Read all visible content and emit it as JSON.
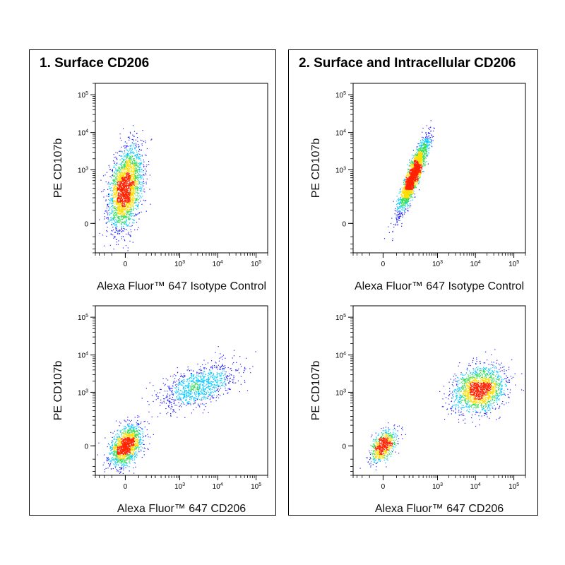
{
  "panels": [
    {
      "title": "1. Surface CD206"
    },
    {
      "title": "2. Surface and Intracellular CD206"
    }
  ],
  "colors": {
    "density_low": "#1a1aff",
    "density_mid1": "#00c8ff",
    "density_mid2": "#33dd55",
    "density_mid3": "#ffdd00",
    "density_high": "#ff2200"
  },
  "chart_data": [
    {
      "type": "scatter",
      "panel": 0,
      "xlabel": "Alexa Fluor™ 647 Isotype Control",
      "ylabel": "PE  CD107b",
      "x_scale": "biexponential",
      "y_scale": "biexponential",
      "xlim": [
        -200,
        200000
      ],
      "ylim": [
        -200,
        200000
      ],
      "x_ticks": [
        {
          "base": "0",
          "exp": ""
        },
        {
          "base": "10",
          "exp": "3"
        },
        {
          "base": "10",
          "exp": "4"
        },
        {
          "base": "10",
          "exp": "5"
        }
      ],
      "y_ticks": [
        {
          "base": "0",
          "exp": ""
        },
        {
          "base": "10",
          "exp": "3"
        },
        {
          "base": "10",
          "exp": "4"
        },
        {
          "base": "10",
          "exp": "5"
        }
      ],
      "populations": [
        {
          "x_center": 0,
          "x_spread": 0.4,
          "y_center": 300,
          "y_spread": 1.0,
          "correlation": 0.35,
          "fraction": 1.0
        }
      ]
    },
    {
      "type": "scatter",
      "panel": 1,
      "xlabel": "Alexa Fluor™ 647 Isotype Control",
      "ylabel": "PE  CD107b",
      "x_scale": "biexponential",
      "y_scale": "biexponential",
      "xlim": [
        -200,
        200000
      ],
      "ylim": [
        -200,
        200000
      ],
      "x_ticks": [
        {
          "base": "0",
          "exp": ""
        },
        {
          "base": "10",
          "exp": "3"
        },
        {
          "base": "10",
          "exp": "4"
        },
        {
          "base": "10",
          "exp": "5"
        }
      ],
      "y_ticks": [
        {
          "base": "0",
          "exp": ""
        },
        {
          "base": "10",
          "exp": "3"
        },
        {
          "base": "10",
          "exp": "4"
        },
        {
          "base": "10",
          "exp": "5"
        }
      ],
      "populations": [
        {
          "x_center": 200,
          "x_spread": 0.35,
          "y_center": 700,
          "y_spread": 0.9,
          "correlation": 0.9,
          "fraction": 1.0
        }
      ]
    },
    {
      "type": "scatter",
      "panel": 0,
      "xlabel": "Alexa Fluor™ 647 CD206",
      "ylabel": "PE  CD107b",
      "x_scale": "biexponential",
      "y_scale": "biexponential",
      "xlim": [
        -200,
        200000
      ],
      "ylim": [
        -200,
        200000
      ],
      "x_ticks": [
        {
          "base": "0",
          "exp": ""
        },
        {
          "base": "10",
          "exp": "3"
        },
        {
          "base": "10",
          "exp": "4"
        },
        {
          "base": "10",
          "exp": "5"
        }
      ],
      "y_ticks": [
        {
          "base": "0",
          "exp": ""
        },
        {
          "base": "10",
          "exp": "3"
        },
        {
          "base": "10",
          "exp": "4"
        },
        {
          "base": "10",
          "exp": "5"
        }
      ],
      "populations": [
        {
          "x_center": 0,
          "x_spread": 0.4,
          "y_center": 0,
          "y_spread": 0.5,
          "correlation": 0.4,
          "fraction": 0.6
        },
        {
          "x_center": 3000,
          "x_spread": 0.9,
          "y_center": 1500,
          "y_spread": 0.55,
          "correlation": 0.5,
          "fraction": 0.4
        }
      ]
    },
    {
      "type": "scatter",
      "panel": 1,
      "xlabel": "Alexa Fluor™ 647 CD206",
      "ylabel": "PE  CD107b",
      "x_scale": "biexponential",
      "y_scale": "biexponential",
      "xlim": [
        -200,
        200000
      ],
      "ylim": [
        -200,
        200000
      ],
      "x_ticks": [
        {
          "base": "0",
          "exp": ""
        },
        {
          "base": "10",
          "exp": "3"
        },
        {
          "base": "10",
          "exp": "4"
        },
        {
          "base": "10",
          "exp": "5"
        }
      ],
      "y_ticks": [
        {
          "base": "0",
          "exp": ""
        },
        {
          "base": "10",
          "exp": "3"
        },
        {
          "base": "10",
          "exp": "4"
        },
        {
          "base": "10",
          "exp": "5"
        }
      ],
      "populations": [
        {
          "x_center": 0,
          "x_spread": 0.3,
          "y_center": 0,
          "y_spread": 0.4,
          "correlation": 0.5,
          "fraction": 0.3
        },
        {
          "x_center": 12000,
          "x_spread": 0.65,
          "y_center": 1200,
          "y_spread": 0.55,
          "correlation": 0.2,
          "fraction": 0.7
        }
      ]
    }
  ]
}
